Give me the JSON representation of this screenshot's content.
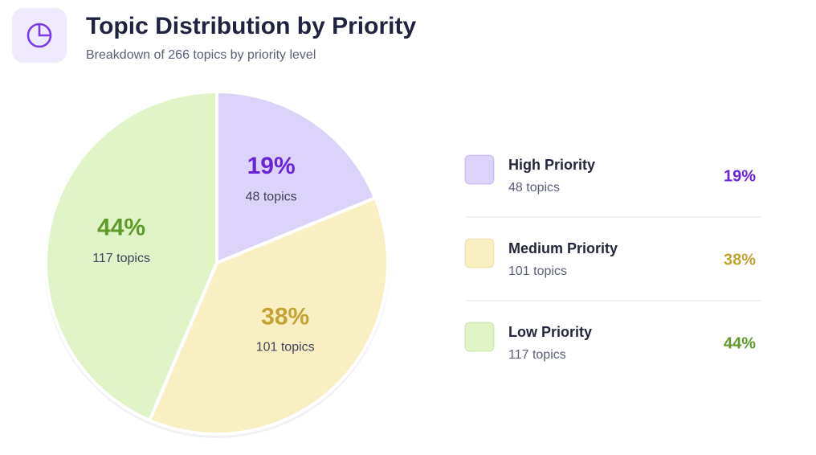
{
  "header": {
    "title": "Topic Distribution by Priority",
    "subtitle": "Breakdown of 266 topics by priority level"
  },
  "chart_data": {
    "type": "pie",
    "categories": [
      "High Priority",
      "Medium Priority",
      "Low Priority"
    ],
    "values": [
      19,
      38,
      44
    ],
    "value_labels": [
      "19%",
      "38%",
      "44%"
    ],
    "count_labels": [
      "48 topics",
      "101 topics",
      "117 topics"
    ],
    "colors": [
      "#dcd3fb",
      "#f8f0c2",
      "#e0f4c8"
    ],
    "label_colors": [
      "#6a24d8",
      "#c4a233",
      "#5e9a2c"
    ]
  }
}
